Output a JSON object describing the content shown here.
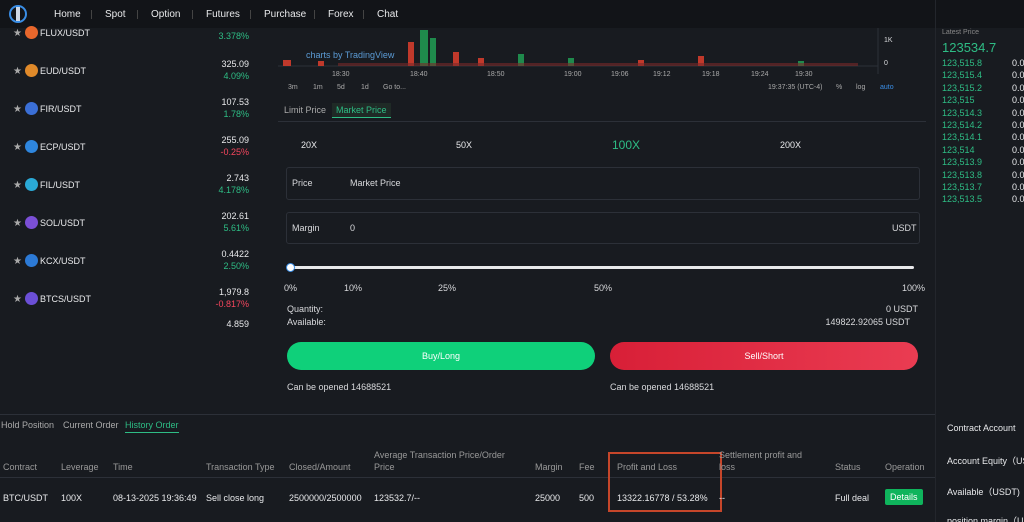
{
  "nav": [
    "Home",
    "Spot",
    "Option",
    "Futures",
    "Purchase",
    "Forex",
    "Chat"
  ],
  "markets": [
    {
      "symbol": "FLUX/USDT",
      "change": "3.378%"
    },
    {
      "symbol": "EUD/USDT",
      "price": "325.09",
      "change": "4.09%"
    },
    {
      "symbol": "FIR/USDT",
      "price": "107.53",
      "change": "1.78%"
    },
    {
      "symbol": "ECP/USDT",
      "price": "255.09",
      "change": "-0.25%"
    },
    {
      "symbol": "FIL/USDT",
      "price": "2.743",
      "change": "4.178%"
    },
    {
      "symbol": "SOL/USDT",
      "price": "202.61",
      "change": "5.61%"
    },
    {
      "symbol": "KCX/USDT",
      "price": "0.4422",
      "change": "2.50%"
    },
    {
      "symbol": "BTCS/USDT",
      "price": "1,979.8",
      "change": "-0.817%"
    },
    {
      "price": "4.859"
    }
  ],
  "chart": {
    "watermark": "charts by TradingView",
    "axis_labels": [
      "1K",
      "0"
    ],
    "times": [
      "18:30",
      "18:40",
      "18:50",
      "19:00",
      "19:06",
      "19:12",
      "19:18",
      "19:24",
      "19:30"
    ],
    "intervals": [
      "3m",
      "1m",
      "5d",
      "1d",
      "Go to..."
    ],
    "clock": "19:37:35 (UTC-4)",
    "options": [
      "%",
      "log",
      "auto"
    ]
  },
  "order_book": {
    "label": "Latest Price",
    "price": "123534.7",
    "rows": [
      "123,515.8",
      "123,515.4",
      "123,515.2",
      "123,515",
      "123,514.3",
      "123,514.2",
      "123,514.1",
      "123,514",
      "123,513.9",
      "123,513.8",
      "123,513.7",
      "123,513.5"
    ],
    "amount": "0.0"
  },
  "trade": {
    "tabs": [
      "Limit Price",
      "Market Price"
    ],
    "leverages": [
      "20X",
      "50X",
      "100X",
      "200X"
    ],
    "price_label": "Price",
    "price_value": "Market Price",
    "margin_label": "Margin",
    "margin_value": "0",
    "unit": "USDT",
    "slider": [
      "0%",
      "10%",
      "25%",
      "50%",
      "100%"
    ],
    "quantity_label": "Quantity:",
    "quantity": "0 USDT",
    "available_label": "Available:",
    "available": "149822.92065 USDT",
    "buy": "Buy/Long",
    "sell": "Sell/Short",
    "buy_note": "Can be opened 14688521",
    "sell_note": "Can be opened 14688521"
  },
  "orders": {
    "tabs": [
      "Hold Position",
      "Current Order",
      "History Order"
    ],
    "headers": [
      "Contract",
      "Leverage",
      "Time",
      "Transaction Type",
      "Closed/Amount",
      "Average Transaction Price/Order Price",
      "Margin",
      "Fee",
      "Profit and Loss",
      "Settlement profit and loss",
      "Status",
      "Operation"
    ],
    "row": [
      "BTC/USDT",
      "100X",
      "08-13-2025 19:36:49",
      "Sell close long",
      "2500000/2500000",
      "123532.7/--",
      "25000",
      "500",
      "13322.16778 / 53.28%",
      "--",
      "Full deal",
      "Details"
    ]
  },
  "account": [
    "Contract Account",
    "Account Equity（US",
    "Available（USDT)",
    "position margin（U"
  ]
}
